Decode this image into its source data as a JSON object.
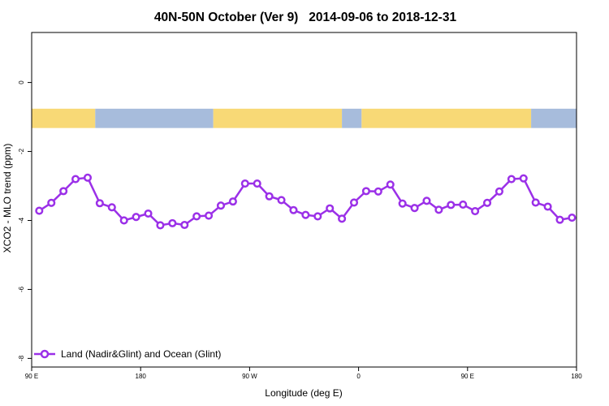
{
  "chart_data": {
    "type": "line",
    "title": "40N-50N October (Ver 9)   2014-09-06 to 2018-12-31",
    "xlabel": "Longitude (deg E)",
    "ylabel": "XCO2 - MLO trend (ppm)",
    "xlim": [
      -90,
      270
    ],
    "ylim": [
      -8.25,
      1.45
    ],
    "x_ticks": [
      {
        "value": -90,
        "label": "90 E"
      },
      {
        "value": -18,
        "label": "180"
      },
      {
        "value": 54,
        "label": "90 W"
      },
      {
        "value": 126,
        "label": "0"
      },
      {
        "value": 198,
        "label": "90 E"
      },
      {
        "value": 270,
        "label": "180"
      }
    ],
    "y_ticks": [
      {
        "value": 0,
        "label": "0"
      },
      {
        "value": -2,
        "label": "-2"
      },
      {
        "value": -4,
        "label": "-4"
      },
      {
        "value": -6,
        "label": "-6"
      },
      {
        "value": -8,
        "label": "-8"
      }
    ],
    "grid": false,
    "legend": "bottom-left",
    "land_ocean_strip": {
      "y_range": [
        -1.32,
        -0.76
      ],
      "colors": {
        "land": "#f8d976",
        "ocean": "#a7bcdc"
      },
      "segments": [
        {
          "from": -90,
          "to": -48,
          "type": "land"
        },
        {
          "from": -48,
          "to": 30,
          "type": "ocean"
        },
        {
          "from": 30,
          "to": 115,
          "type": "land"
        },
        {
          "from": 115,
          "to": 128,
          "type": "ocean"
        },
        {
          "from": 128,
          "to": 240,
          "type": "land"
        },
        {
          "from": 240,
          "to": 270,
          "type": "ocean"
        }
      ]
    },
    "series": [
      {
        "name": "Land (Nadir&Glint) and Ocean (Glint)",
        "color": "#9b30e8",
        "x": [
          -85,
          -77,
          -69,
          -61,
          -53,
          -45,
          -37,
          -29,
          -21,
          -13,
          -5,
          3,
          11,
          19,
          27,
          35,
          43,
          51,
          59,
          67,
          75,
          83,
          91,
          99,
          107,
          115,
          123,
          131,
          139,
          147,
          155,
          163,
          171,
          179,
          187,
          195,
          203,
          211,
          219,
          227,
          235,
          243,
          251,
          259,
          267
        ],
        "values": [
          -3.72,
          -3.49,
          -3.15,
          -2.8,
          -2.76,
          -3.5,
          -3.62,
          -4.0,
          -3.9,
          -3.8,
          -4.14,
          -4.08,
          -4.13,
          -3.88,
          -3.86,
          -3.57,
          -3.45,
          -2.93,
          -2.93,
          -3.3,
          -3.41,
          -3.7,
          -3.84,
          -3.88,
          -3.65,
          -3.95,
          -3.48,
          -3.15,
          -3.16,
          -2.96,
          -3.51,
          -3.64,
          -3.43,
          -3.69,
          -3.55,
          -3.54,
          -3.73,
          -3.49,
          -3.16,
          -2.8,
          -2.78,
          -3.48,
          -3.6,
          -3.98,
          -3.92
        ]
      }
    ]
  }
}
